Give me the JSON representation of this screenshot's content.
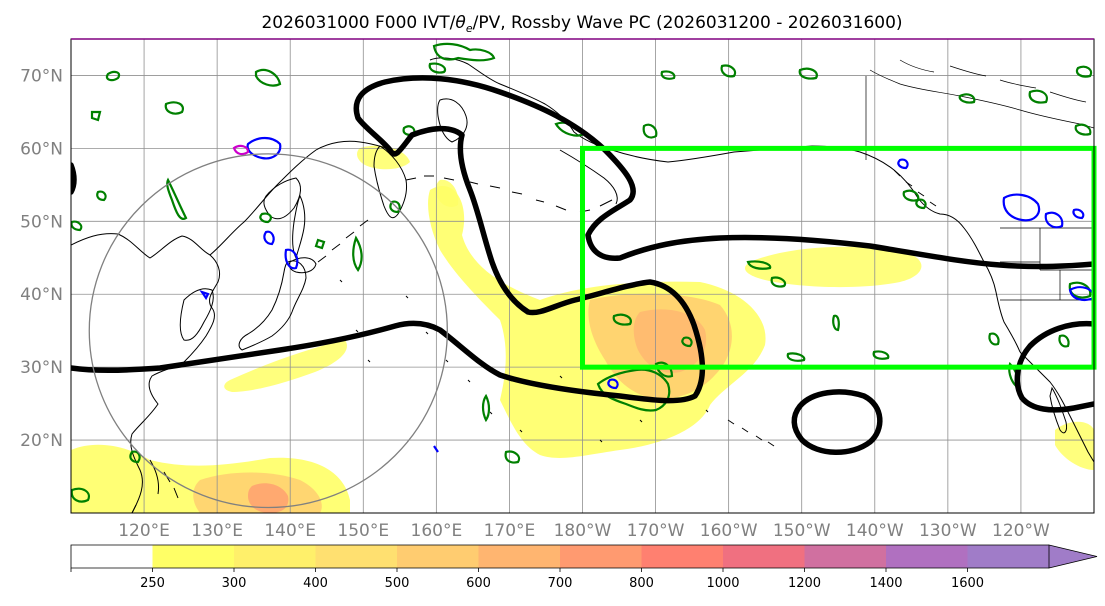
{
  "title_parts": {
    "before": "2026031000 F000 IVT/",
    "theta": "θ",
    "sub": "e",
    "after": "/PV, Rossby Wave PC (2026031200 - 2026031600)"
  },
  "map": {
    "lon_range": [
      110,
      250
    ],
    "lat_range": [
      10,
      75
    ],
    "lat_ticks": [
      {
        "value": 70,
        "label": "70°N"
      },
      {
        "value": 60,
        "label": "60°N"
      },
      {
        "value": 50,
        "label": "50°N"
      },
      {
        "value": 40,
        "label": "40°N"
      },
      {
        "value": 30,
        "label": "30°N"
      },
      {
        "value": 20,
        "label": "20°N"
      }
    ],
    "lon_ticks": [
      {
        "value": 120,
        "label": "120°E"
      },
      {
        "value": 130,
        "label": "130°E"
      },
      {
        "value": 140,
        "label": "140°E"
      },
      {
        "value": 150,
        "label": "150°E"
      },
      {
        "value": 160,
        "label": "160°E"
      },
      {
        "value": 170,
        "label": "170°E"
      },
      {
        "value": 180,
        "label": "180°W"
      },
      {
        "value": 190,
        "label": "170°W"
      },
      {
        "value": 200,
        "label": "160°W"
      },
      {
        "value": 210,
        "label": "150°W"
      },
      {
        "value": 220,
        "label": "140°W"
      },
      {
        "value": 230,
        "label": "130°W"
      },
      {
        "value": 240,
        "label": "120°W"
      }
    ],
    "gridlines": true,
    "region_box": {
      "lon": [
        180,
        250
      ],
      "lat": [
        30,
        60
      ],
      "color": "#00ff00"
    },
    "circle": {
      "center_lon": 137,
      "center_lat": 35,
      "radius_deg": 25,
      "color": "#808080"
    },
    "colors": {
      "coast": "#000000",
      "pv_contour": "#000000",
      "theta_positive": "#008000",
      "theta_negative": "#0000ff",
      "theta_magenta": "#cc00cc"
    }
  },
  "colorbar": {
    "levels": [
      "250",
      "300",
      "400",
      "500",
      "600",
      "700",
      "800",
      "1000",
      "1200",
      "1400",
      "1600"
    ],
    "colors": [
      "#ffffff",
      "#ffff66",
      "#fff06a",
      "#ffe070",
      "#ffcc70",
      "#ffb570",
      "#ff9a70",
      "#ff8070",
      "#f07080",
      "#d070a0",
      "#b070c0",
      "#a07cc8"
    ]
  }
}
